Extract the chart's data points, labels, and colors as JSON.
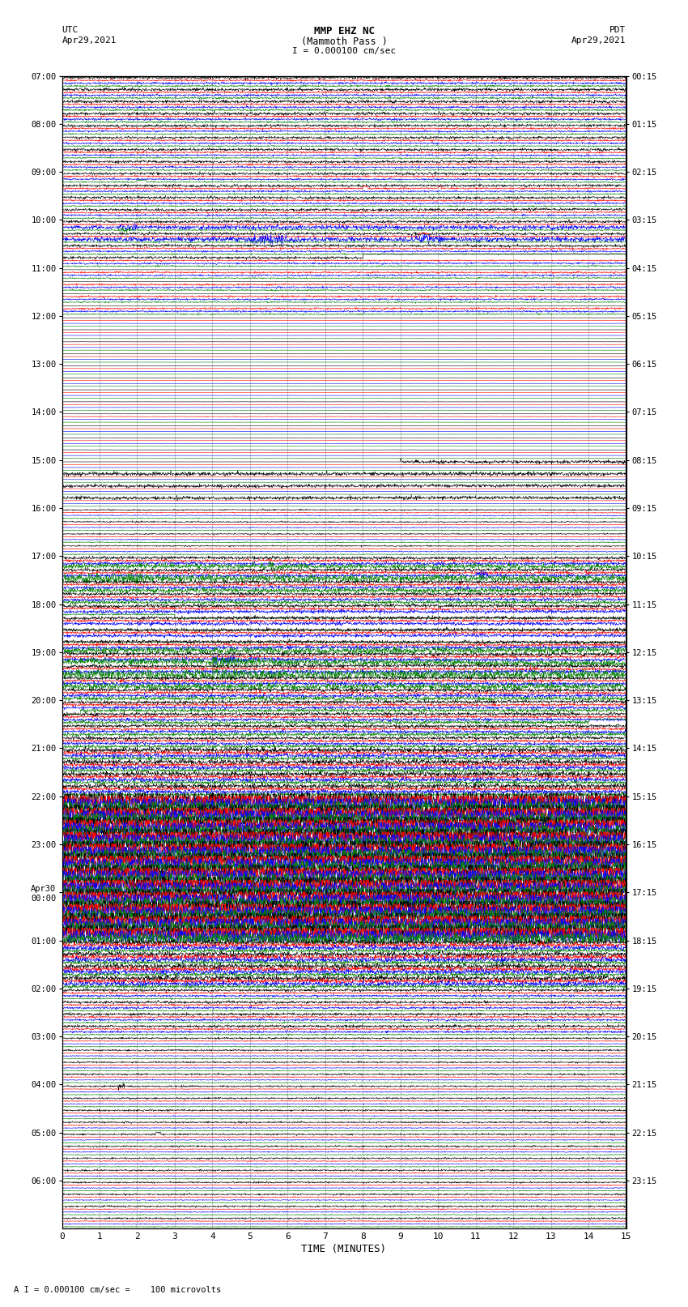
{
  "title_line1": "MMP EHZ NC",
  "title_line2": "(Mammoth Pass )",
  "title_scale": "I = 0.000100 cm/sec",
  "label_left_top": "UTC",
  "label_left_date": "Apr29,2021",
  "label_right_top": "PDT",
  "label_right_date": "Apr29,2021",
  "xlabel": "TIME (MINUTES)",
  "footer": "A I = 0.000100 cm/sec =    100 microvolts",
  "utc_labels": [
    "07:00",
    "",
    "",
    "",
    "08:00",
    "",
    "",
    "",
    "09:00",
    "",
    "",
    "",
    "10:00",
    "",
    "",
    "",
    "11:00",
    "",
    "",
    "",
    "12:00",
    "",
    "",
    "",
    "13:00",
    "",
    "",
    "",
    "14:00",
    "",
    "",
    "",
    "15:00",
    "",
    "",
    "",
    "16:00",
    "",
    "",
    "",
    "17:00",
    "",
    "",
    "",
    "18:00",
    "",
    "",
    "",
    "19:00",
    "",
    "",
    "",
    "20:00",
    "",
    "",
    "",
    "21:00",
    "",
    "",
    "",
    "22:00",
    "",
    "",
    "",
    "23:00",
    "",
    "",
    "",
    "Apr30\n00:00",
    "",
    "",
    "",
    "01:00",
    "",
    "",
    "",
    "02:00",
    "",
    "",
    "",
    "03:00",
    "",
    "",
    "",
    "04:00",
    "",
    "",
    "",
    "05:00",
    "",
    "",
    "",
    "06:00",
    "",
    "",
    ""
  ],
  "pdt_labels": [
    "00:15",
    "",
    "",
    "",
    "01:15",
    "",
    "",
    "",
    "02:15",
    "",
    "",
    "",
    "03:15",
    "",
    "",
    "",
    "04:15",
    "",
    "",
    "",
    "05:15",
    "",
    "",
    "",
    "06:15",
    "",
    "",
    "",
    "07:15",
    "",
    "",
    "",
    "08:15",
    "",
    "",
    "",
    "09:15",
    "",
    "",
    "",
    "10:15",
    "",
    "",
    "",
    "11:15",
    "",
    "",
    "",
    "12:15",
    "",
    "",
    "",
    "13:15",
    "",
    "",
    "",
    "14:15",
    "",
    "",
    "",
    "15:15",
    "",
    "",
    "",
    "16:15",
    "",
    "",
    "",
    "17:15",
    "",
    "",
    "",
    "18:15",
    "",
    "",
    "",
    "19:15",
    "",
    "",
    "",
    "20:15",
    "",
    "",
    "",
    "21:15",
    "",
    "",
    "",
    "22:15",
    "",
    "",
    "",
    "23:15",
    "",
    "",
    ""
  ],
  "n_rows": 96,
  "n_cols": 15,
  "bg_color": "#ffffff",
  "grid_color": "#aaaaaa",
  "trace_colors": [
    "#000000",
    "#ff0000",
    "#0000ff",
    "#008000"
  ],
  "noise_seed": 12345
}
